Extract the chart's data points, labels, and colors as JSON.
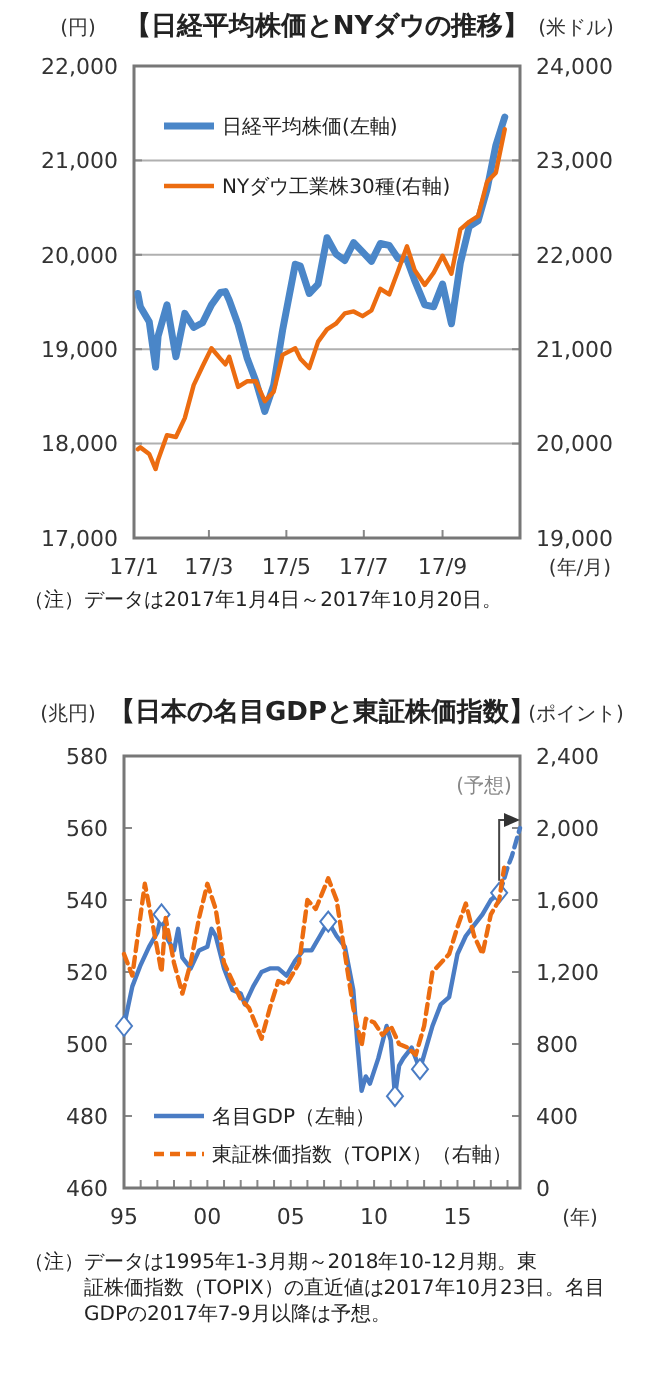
{
  "chart_data": [
    {
      "type": "line",
      "title": "【日経平均株価とNYダウの推移】",
      "ylabel": "(円)",
      "y2label": "(米ドル)",
      "xlabel": "(年/月)",
      "x": [
        "2017-01-04",
        "2017-01-06",
        "2017-01-13",
        "2017-01-18",
        "2017-01-20",
        "2017-01-27",
        "2017-02-03",
        "2017-02-10",
        "2017-02-17",
        "2017-02-24",
        "2017-03-03",
        "2017-03-10",
        "2017-03-14",
        "2017-03-17",
        "2017-03-24",
        "2017-03-31",
        "2017-04-07",
        "2017-04-14",
        "2017-04-21",
        "2017-04-28",
        "2017-05-08",
        "2017-05-12",
        "2017-05-19",
        "2017-05-26",
        "2017-06-02",
        "2017-06-09",
        "2017-06-16",
        "2017-06-23",
        "2017-06-30",
        "2017-07-07",
        "2017-07-14",
        "2017-07-21",
        "2017-07-28",
        "2017-08-04",
        "2017-08-10",
        "2017-08-18",
        "2017-08-25",
        "2017-09-01",
        "2017-09-08",
        "2017-09-15",
        "2017-09-22",
        "2017-09-29",
        "2017-10-06",
        "2017-10-13",
        "2017-10-20"
      ],
      "series": [
        {
          "name": "日経平均株価(左軸)",
          "color": "#4a86c8",
          "values": [
            19590,
            19450,
            19290,
            18810,
            19140,
            19470,
            18920,
            19380,
            19230,
            19280,
            19470,
            19600,
            19610,
            19520,
            19260,
            18910,
            18660,
            18340,
            18620,
            19200,
            19900,
            19880,
            19590,
            19690,
            20180,
            20010,
            19940,
            20130,
            20030,
            19930,
            20120,
            20100,
            19960,
            19950,
            19730,
            19470,
            19450,
            19690,
            19270,
            19910,
            20300,
            20360,
            20690,
            21160,
            21460
          ]
        },
        {
          "name": "NYダウ工業株30種(右軸)",
          "color": "#ec6c10",
          "axis": "y2",
          "values": [
            19940,
            19960,
            19890,
            19730,
            19830,
            20090,
            20070,
            20270,
            20620,
            20820,
            21010,
            20900,
            20840,
            20920,
            20600,
            20660,
            20660,
            20450,
            20550,
            20940,
            21010,
            20900,
            20800,
            21080,
            21210,
            21270,
            21380,
            21400,
            21350,
            21410,
            21640,
            21580,
            21830,
            22090,
            21840,
            21680,
            21810,
            21990,
            21800,
            22270,
            22350,
            22410,
            22770,
            22870,
            23330
          ]
        }
      ],
      "xlim": [
        "2017-01-01",
        "2017-11-01"
      ],
      "xticks": [
        {
          "value": "2017-01-01",
          "label": "17/1"
        },
        {
          "value": "2017-03-01",
          "label": "17/3"
        },
        {
          "value": "2017-05-01",
          "label": "17/5"
        },
        {
          "value": "2017-07-01",
          "label": "17/7"
        },
        {
          "value": "2017-09-01",
          "label": "17/9"
        }
      ],
      "ylim": [
        17000,
        22000
      ],
      "yticks": [
        {
          "value": 17000,
          "label": "17,000"
        },
        {
          "value": 18000,
          "label": "18,000"
        },
        {
          "value": 19000,
          "label": "19,000"
        },
        {
          "value": 20000,
          "label": "20,000"
        },
        {
          "value": 21000,
          "label": "21,000"
        },
        {
          "value": 22000,
          "label": "22,000"
        }
      ],
      "y2lim": [
        19000,
        24000
      ],
      "y2ticks": [
        {
          "value": 19000,
          "label": "19,000"
        },
        {
          "value": 20000,
          "label": "20,000"
        },
        {
          "value": 21000,
          "label": "21,000"
        },
        {
          "value": 22000,
          "label": "22,000"
        },
        {
          "value": 23000,
          "label": "23,000"
        },
        {
          "value": 24000,
          "label": "24,000"
        }
      ],
      "grid": "y",
      "legend": "top left",
      "annotations": [
        "（注）データは2017年1月4日～2017年10月20日。"
      ]
    },
    {
      "type": "line",
      "title": "【日本の名目GDPと東証株価指数】",
      "ylabel": "(兆円)",
      "y2label": "(ポイント)",
      "xlabel": "(年)",
      "series": [
        {
          "name": "名目GDP（左軸）",
          "color": "#4a7cc4",
          "x": [
            1995,
            1995.5,
            1996,
            1996.5,
            1997,
            1997.25,
            1997.5,
            1998,
            1998.25,
            1998.5,
            1999,
            1999.5,
            2000,
            2000.25,
            2000.5,
            2001,
            2001.5,
            2002,
            2002.25,
            2002.75,
            2003.25,
            2003.75,
            2004.25,
            2004.75,
            2005.25,
            2005.75,
            2006.25,
            2006.75,
            2007.25,
            2007.75,
            2008.25,
            2008.75,
            2009,
            2009.25,
            2009.5,
            2009.75,
            2010.25,
            2010.75,
            2011,
            2011.25,
            2011.5,
            2011.75,
            2012.25,
            2012.75,
            2013,
            2013.5,
            2014,
            2014.5,
            2015,
            2015.5,
            2016,
            2016.5,
            2017,
            2017.5
          ],
          "values": [
            505,
            516,
            522,
            527,
            531,
            536,
            530,
            526,
            532,
            524,
            521,
            526,
            527,
            532,
            530,
            521,
            515,
            514,
            511,
            516,
            520,
            521,
            521,
            519,
            523,
            526,
            526,
            530,
            534,
            530,
            527,
            515,
            500,
            487,
            491,
            489,
            496,
            505,
            501,
            485.5,
            494,
            496,
            499,
            493,
            497,
            505,
            511,
            513,
            525,
            530,
            533,
            536,
            540,
            542
          ]
        },
        {
          "type": "line",
          "color": "#4a7cc4",
          "line_style": "dashed",
          "x": [
            2017.5,
            2017.75,
            2018,
            2018.25,
            2018.5,
            2018.75
          ],
          "values": [
            542,
            545,
            549,
            552,
            556,
            560
          ]
        },
        {
          "type": "scatter",
          "color": "#4a7cc4",
          "marker": "diamond",
          "x": [
            1995,
            1997.25,
            2007.25,
            2011.25,
            2012.75,
            2017.5
          ],
          "values": [
            505,
            536,
            534,
            485.5,
            493,
            542
          ]
        },
        {
          "name": "東証株価指数（TOPIX）（右軸）",
          "color": "#ec6c10",
          "axis": "y2",
          "line_style": "dashed",
          "x": [
            1995,
            1995.5,
            1996.25,
            1996.75,
            1997.25,
            1997.5,
            1998,
            1998.5,
            1999,
            1999.5,
            2000,
            2000.5,
            2001,
            2001.5,
            2002,
            2002.5,
            2003.25,
            2003.75,
            2004.25,
            2004.75,
            2005.5,
            2006,
            2006.5,
            2007.25,
            2007.75,
            2008.25,
            2008.75,
            2009.25,
            2009.5,
            2010,
            2010.5,
            2011,
            2011.5,
            2012,
            2012.5,
            2013,
            2013.5,
            2014,
            2014.5,
            2015,
            2015.5,
            2016,
            2016.5,
            2017,
            2017.5,
            2017.8
          ],
          "values": [
            1300,
            1180,
            1690,
            1450,
            1200,
            1500,
            1250,
            1080,
            1250,
            1500,
            1690,
            1550,
            1250,
            1150,
            1050,
            1000,
            830,
            1000,
            1150,
            1130,
            1250,
            1600,
            1550,
            1720,
            1600,
            1300,
            1000,
            790,
            940,
            920,
            850,
            900,
            800,
            780,
            740,
            900,
            1200,
            1250,
            1300,
            1450,
            1580,
            1400,
            1300,
            1520,
            1600,
            1780
          ]
        }
      ],
      "xlim": [
        1995,
        2018.75
      ],
      "xticks": [
        {
          "value": 1995,
          "label": "95"
        },
        {
          "value": 1996,
          "label": null
        },
        {
          "value": 1997,
          "label": null
        },
        {
          "value": 1998,
          "label": null
        },
        {
          "value": 1999,
          "label": null
        },
        {
          "value": 2000,
          "label": "00"
        },
        {
          "value": 2001,
          "label": null
        },
        {
          "value": 2002,
          "label": null
        },
        {
          "value": 2003,
          "label": null
        },
        {
          "value": 2004,
          "label": null
        },
        {
          "value": 2005,
          "label": "05"
        },
        {
          "value": 2006,
          "label": null
        },
        {
          "value": 2007,
          "label": null
        },
        {
          "value": 2008,
          "label": null
        },
        {
          "value": 2009,
          "label": null
        },
        {
          "value": 2010,
          "label": "10"
        },
        {
          "value": 2011,
          "label": null
        },
        {
          "value": 2012,
          "label": null
        },
        {
          "value": 2013,
          "label": null
        },
        {
          "value": 2014,
          "label": null
        },
        {
          "value": 2015,
          "label": "15"
        },
        {
          "value": 2016,
          "label": null
        },
        {
          "value": 2017,
          "label": null
        },
        {
          "value": 2018,
          "label": null
        }
      ],
      "ylim": [
        460,
        580
      ],
      "yticks": [
        460,
        480,
        500,
        520,
        540,
        560,
        580
      ],
      "y2lim": [
        0,
        2400
      ],
      "y2ticks": [
        0,
        400,
        800,
        {
          "value": 1200,
          "label": "1,200"
        },
        {
          "value": 1600,
          "label": "1,600"
        },
        {
          "value": 2000,
          "label": "2,000"
        },
        {
          "value": 2400,
          "label": "2,400"
        }
      ],
      "grid": false,
      "legend": "bottom left",
      "annotations": [
        "(予想)",
        "（注）データは1995年1-3月期～2018年10-12月期。東証株価指数（TOPIX）の直近値は2017年10月23日。名目GDPの2017年7-9月以降は予想。"
      ]
    }
  ]
}
